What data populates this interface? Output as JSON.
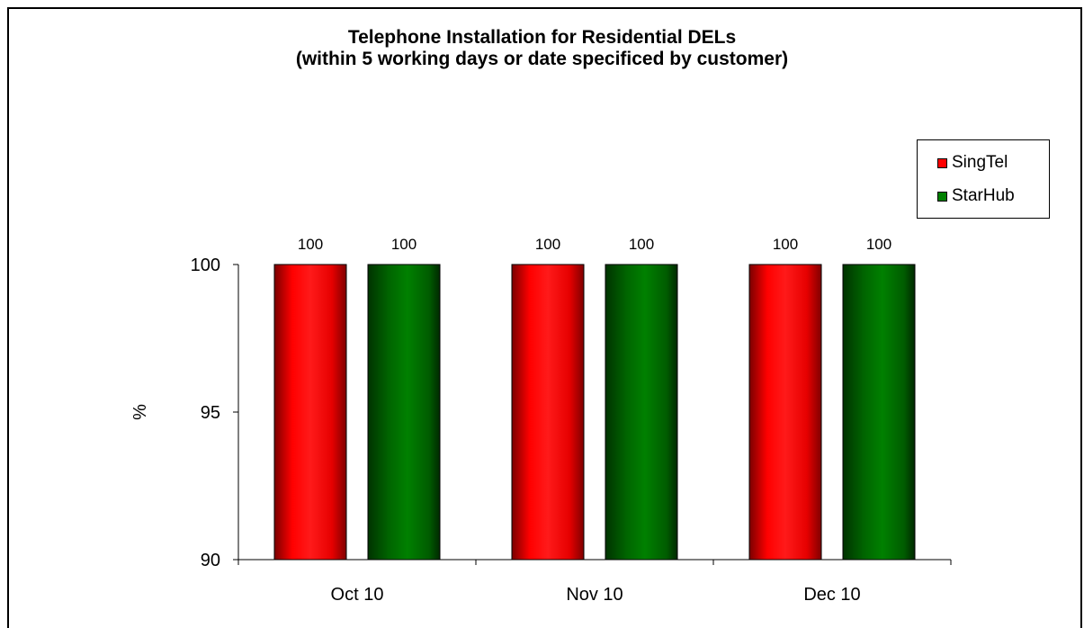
{
  "chart_data": {
    "type": "bar",
    "title_lines": [
      "Telephone Installation for Residential DELs",
      "(within 5 working days or date specificed by customer)"
    ],
    "xlabel": "",
    "ylabel": "%",
    "ylim": [
      90,
      100
    ],
    "yticks": [
      "90",
      "95",
      "100"
    ],
    "categories": [
      "Oct 10",
      "Nov 10",
      "Dec 10"
    ],
    "series": [
      {
        "name": "SingTel",
        "values": [
          100,
          100,
          100
        ],
        "data_labels": [
          "100",
          "100",
          "100"
        ],
        "color": "#ff0000"
      },
      {
        "name": "StarHub",
        "values": [
          100,
          100,
          100
        ],
        "data_labels": [
          "100",
          "100",
          "100"
        ],
        "color": "#008000"
      }
    ],
    "grid": false,
    "legend_position": "top-right"
  }
}
